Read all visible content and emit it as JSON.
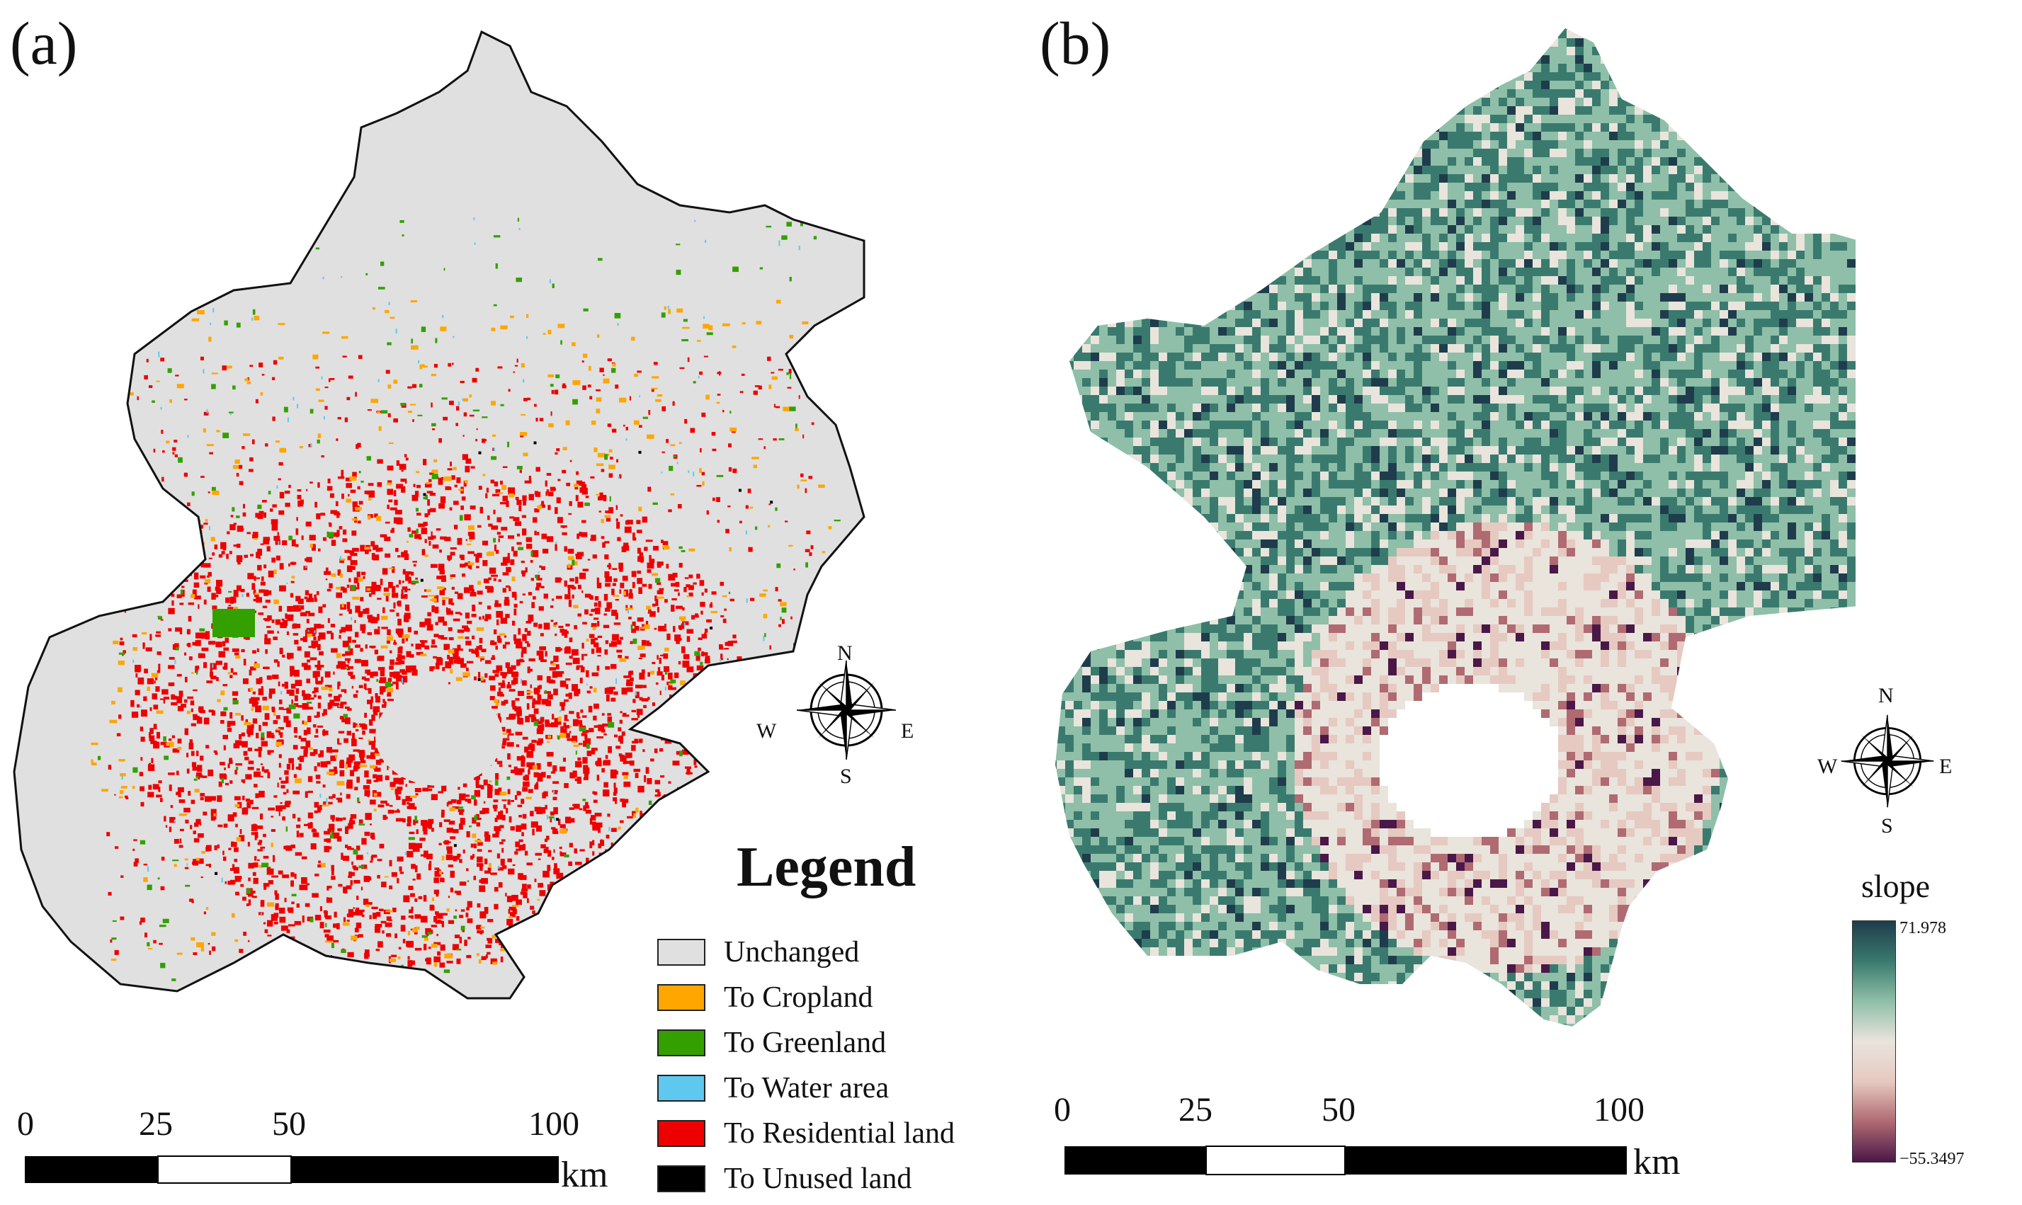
{
  "panel_a": {
    "label": "(a)",
    "compass": {
      "n": "N",
      "s": "S",
      "e": "E",
      "w": "W"
    },
    "legend": {
      "title": "Legend",
      "items": [
        {
          "label": "Unchanged",
          "color": "#e0e0e0"
        },
        {
          "label": "To Cropland",
          "color": "#ffa600"
        },
        {
          "label": "To Greenland",
          "color": "#33a000"
        },
        {
          "label": "To Water area",
          "color": "#5ec8ee"
        },
        {
          "label": "To Residential land",
          "color": "#ee0000"
        },
        {
          "label": "To Unused land",
          "color": "#000000"
        }
      ]
    },
    "scale": {
      "ticks": [
        "0",
        "25",
        "50",
        "100"
      ],
      "unit": "km"
    }
  },
  "panel_b": {
    "label": "(b)",
    "compass": {
      "n": "N",
      "s": "S",
      "e": "E",
      "w": "W"
    },
    "colorbar": {
      "title": "slope",
      "max": "71.978",
      "min": "−55.3497",
      "colors": [
        "#1f3c4c",
        "#3a7a6e",
        "#8fbfa8",
        "#e9e4dc",
        "#e6c9c1",
        "#b06a72",
        "#4a1848"
      ]
    },
    "scale": {
      "ticks": [
        "0",
        "25",
        "50",
        "100"
      ],
      "unit": "km"
    }
  }
}
